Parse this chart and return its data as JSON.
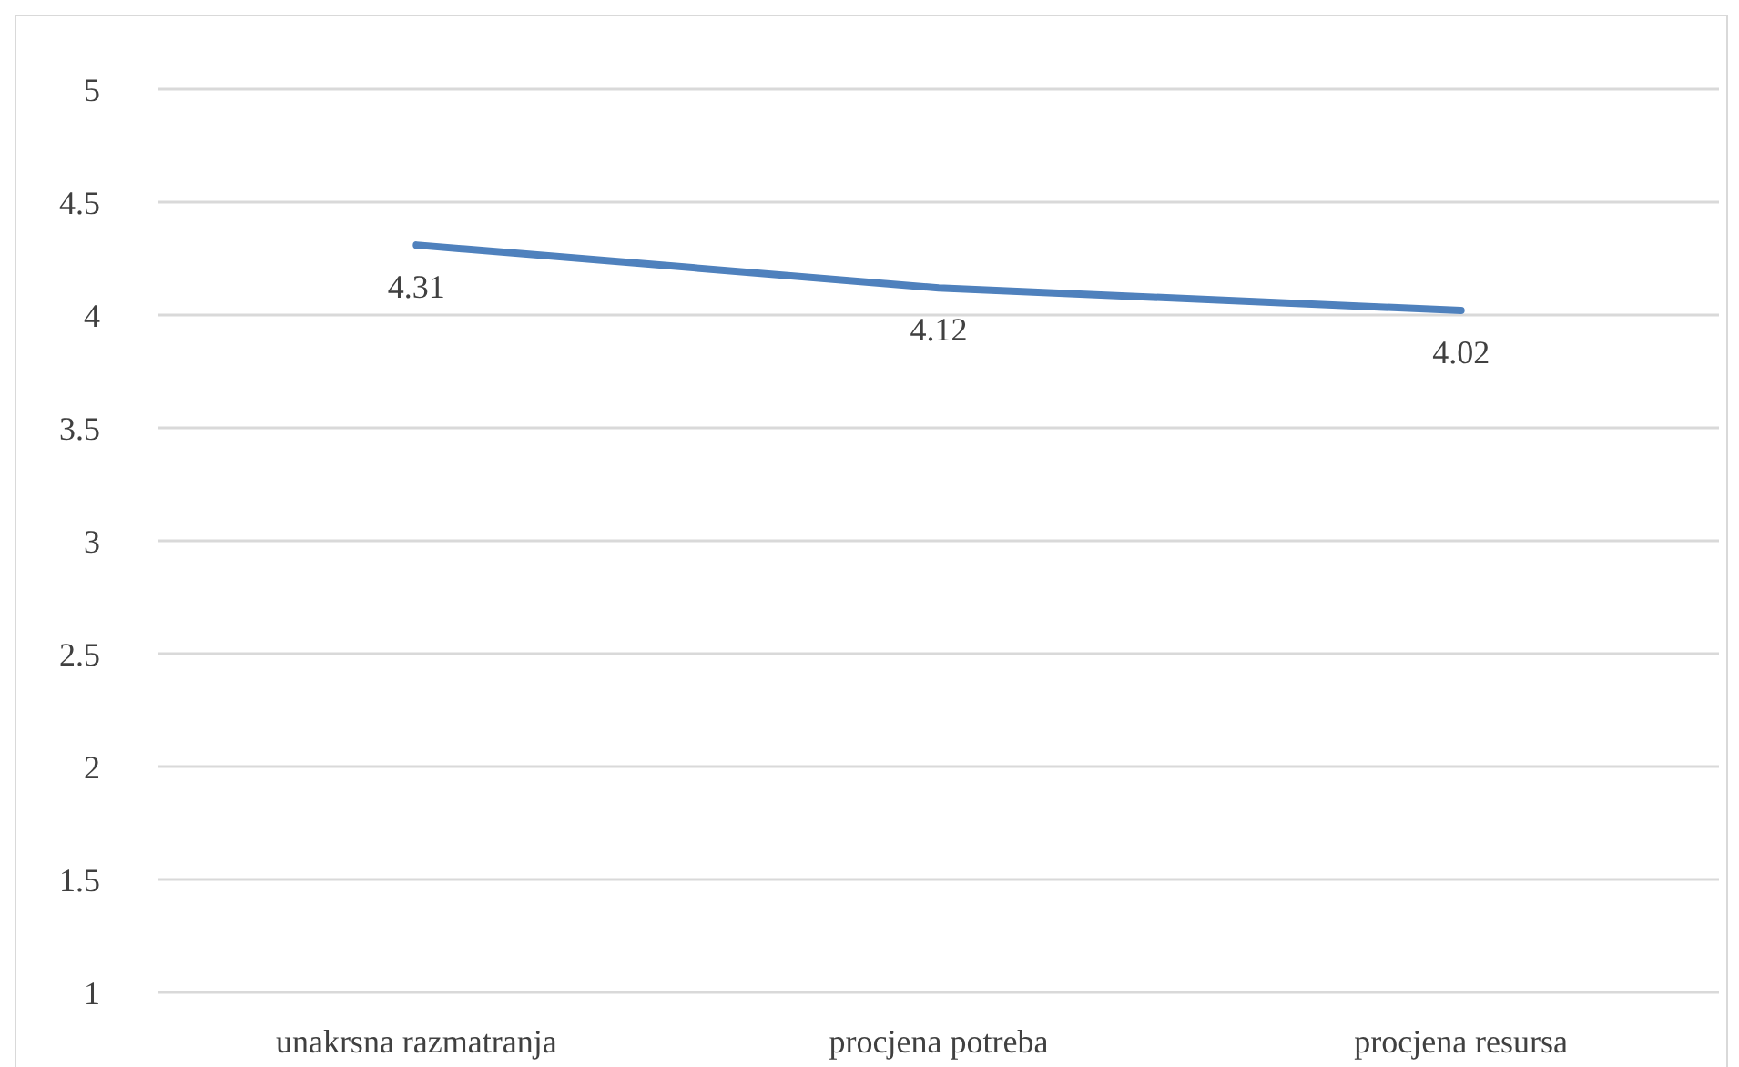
{
  "chart_data": {
    "type": "line",
    "categories": [
      "unakrsna razmatranja",
      "procjena potreba",
      "procjena resursa"
    ],
    "series": [
      {
        "color": "#4f81bd",
        "values": [
          4.31,
          4.12,
          4.02
        ]
      }
    ],
    "ylim": [
      1,
      5
    ],
    "yticks": [
      1,
      1.5,
      2,
      2.5,
      3,
      3.5,
      4,
      4.5,
      5
    ],
    "grid": "y",
    "data_labels": true,
    "marker": "none",
    "line_style": "solid"
  }
}
